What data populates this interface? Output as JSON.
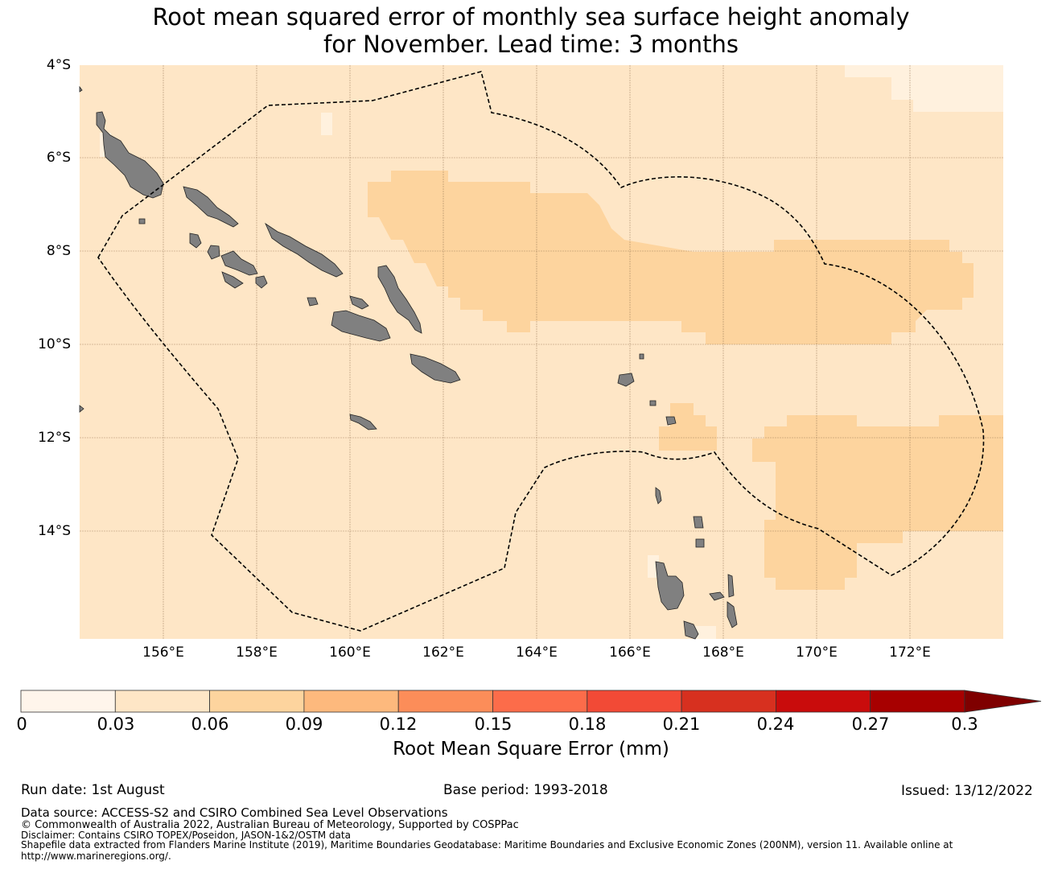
{
  "title": {
    "line1": "Root mean squared error of monthly sea surface height anomaly",
    "line2": "for November. Lead time: 3 months"
  },
  "map": {
    "lat_labels": [
      "4°S",
      "6°S",
      "8°S",
      "10°S",
      "12°S",
      "14°S"
    ],
    "lon_labels": [
      "156°E",
      "158°E",
      "160°E",
      "162°E",
      "164°E",
      "166°E",
      "168°E",
      "170°E",
      "172°E"
    ],
    "colors": {
      "ocean_base": "#fee6c6",
      "ocean_low": "#fff1de",
      "ocean_mid": "#fdd49e",
      "land": "#808080",
      "grid": "#8a6a4a",
      "boundary": "#000000"
    },
    "fill_levels": {
      "base": "0.03–0.06",
      "low": "0–0.03",
      "mid": "0.06–0.09"
    }
  },
  "colorbar": {
    "ticks": [
      "0",
      "0.03",
      "0.06",
      "0.09",
      "0.12",
      "0.15",
      "0.18",
      "0.21",
      "0.24",
      "0.27",
      "0.3"
    ],
    "colors": [
      "#fff5eb",
      "#fee6c6",
      "#fdd49e",
      "#fdb97d",
      "#fc8d59",
      "#fc6c4a",
      "#f24a36",
      "#d7301f",
      "#c90c0c",
      "#a70000",
      "#7f0000"
    ],
    "label": "Root Mean Square Error (mm)"
  },
  "footer": {
    "run_date": "Run date: 1st August",
    "base_period": "Base period: 1993-2018",
    "issued": "Issued: 13/12/2022",
    "data_source": "Data source: ACCESS-S2 and CSIRO Combined Sea Level Observations",
    "copyright": "© Commonwealth of Australia 2022, Australian Bureau of Meteorology, Supported by COSPPac",
    "disclaimer": "Disclaimer: Contains CSIRO TOPEX/Poseidon, JASON-1&2/OSTM data",
    "shapefile": "Shapefile data extracted from Flanders Marine Institute (2019), Maritime Boundaries Geodatabase: Maritime Boundaries and Exclusive Economic Zones (200NM), version 11. Available online at",
    "url": "http://www.marineregions.org/."
  }
}
